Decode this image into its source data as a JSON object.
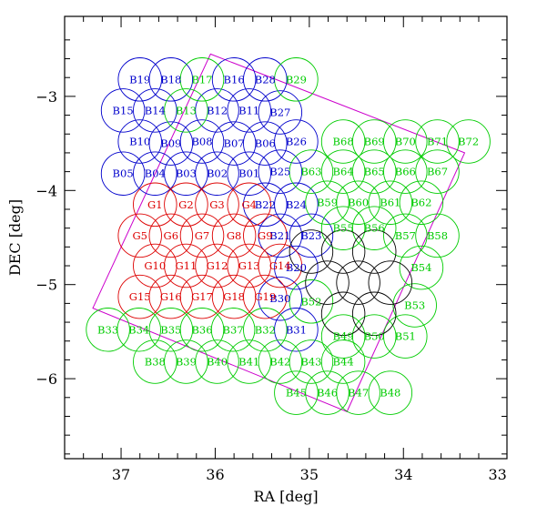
{
  "chart_data": {
    "type": "scatter",
    "xlabel": "RA [deg]",
    "ylabel": "DEC [deg]",
    "xlim": [
      37.6,
      32.9
    ],
    "ylim": [
      -6.85,
      -2.15
    ],
    "xticks": [
      37,
      36,
      35,
      34,
      33
    ],
    "yticks": [
      -3,
      -4,
      -5,
      -6
    ],
    "colors": {
      "blue": "#0000cc",
      "red": "#dd0000",
      "green": "#00cc00",
      "black": "#000000",
      "magenta": "#cc00cc"
    },
    "circle_radius_deg": 0.23,
    "region_polygon": [
      [
        36.05,
        -2.55
      ],
      [
        33.35,
        -3.6
      ],
      [
        34.6,
        -6.35
      ],
      [
        37.3,
        -5.25
      ]
    ],
    "series": [
      {
        "color": "blue",
        "points": [
          {
            "label": "B19",
            "x": 36.8,
            "y": -2.82
          },
          {
            "label": "B18",
            "x": 36.47,
            "y": -2.82
          },
          {
            "label": "B16",
            "x": 35.8,
            "y": -2.82
          },
          {
            "label": "B28",
            "x": 35.47,
            "y": -2.82
          },
          {
            "label": "B15",
            "x": 36.98,
            "y": -3.15
          },
          {
            "label": "B14",
            "x": 36.64,
            "y": -3.15
          },
          {
            "label": "B12",
            "x": 35.98,
            "y": -3.15
          },
          {
            "label": "B11",
            "x": 35.64,
            "y": -3.15
          },
          {
            "label": "B27",
            "x": 35.31,
            "y": -3.17
          },
          {
            "label": "B10",
            "x": 36.8,
            "y": -3.48
          },
          {
            "label": "B09",
            "x": 36.47,
            "y": -3.5
          },
          {
            "label": "B08",
            "x": 36.14,
            "y": -3.48
          },
          {
            "label": "B07",
            "x": 35.8,
            "y": -3.5
          },
          {
            "label": "B06",
            "x": 35.47,
            "y": -3.5
          },
          {
            "label": "B26",
            "x": 35.14,
            "y": -3.48
          },
          {
            "label": "B05",
            "x": 36.98,
            "y": -3.82
          },
          {
            "label": "B04",
            "x": 36.64,
            "y": -3.82
          },
          {
            "label": "B03",
            "x": 36.31,
            "y": -3.82
          },
          {
            "label": "B02",
            "x": 35.98,
            "y": -3.82
          },
          {
            "label": "B01",
            "x": 35.64,
            "y": -3.82
          },
          {
            "label": "B25",
            "x": 35.31,
            "y": -3.8
          },
          {
            "label": "B22",
            "x": 35.47,
            "y": -4.15
          },
          {
            "label": "B24",
            "x": 35.14,
            "y": -4.15
          },
          {
            "label": "B21",
            "x": 35.31,
            "y": -4.48
          },
          {
            "label": "B23",
            "x": 34.98,
            "y": -4.48
          },
          {
            "label": "B20",
            "x": 35.14,
            "y": -4.82
          },
          {
            "label": "B30",
            "x": 35.31,
            "y": -5.15
          },
          {
            "label": "B31",
            "x": 35.14,
            "y": -5.48
          }
        ]
      },
      {
        "color": "red",
        "points": [
          {
            "label": "G1",
            "x": 36.64,
            "y": -4.15
          },
          {
            "label": "G2",
            "x": 36.31,
            "y": -4.15
          },
          {
            "label": "G3",
            "x": 35.98,
            "y": -4.15
          },
          {
            "label": "G4",
            "x": 35.64,
            "y": -4.15
          },
          {
            "label": "G5",
            "x": 36.8,
            "y": -4.48
          },
          {
            "label": "G6",
            "x": 36.47,
            "y": -4.48
          },
          {
            "label": "G7",
            "x": 36.14,
            "y": -4.48
          },
          {
            "label": "G8",
            "x": 35.8,
            "y": -4.48
          },
          {
            "label": "G9",
            "x": 35.47,
            "y": -4.48
          },
          {
            "label": "G10",
            "x": 36.64,
            "y": -4.8
          },
          {
            "label": "G11",
            "x": 36.31,
            "y": -4.8
          },
          {
            "label": "G12",
            "x": 35.98,
            "y": -4.8
          },
          {
            "label": "G13",
            "x": 35.64,
            "y": -4.8
          },
          {
            "label": "G14",
            "x": 35.31,
            "y": -4.8
          },
          {
            "label": "G15",
            "x": 36.8,
            "y": -5.13
          },
          {
            "label": "G16",
            "x": 36.47,
            "y": -5.13
          },
          {
            "label": "G17",
            "x": 36.14,
            "y": -5.13
          },
          {
            "label": "G18",
            "x": 35.8,
            "y": -5.13
          },
          {
            "label": "G19",
            "x": 35.47,
            "y": -5.13
          }
        ]
      },
      {
        "color": "green",
        "points": [
          {
            "label": "B17",
            "x": 36.14,
            "y": -2.82
          },
          {
            "label": "B29",
            "x": 35.14,
            "y": -2.82
          },
          {
            "label": "B13",
            "x": 36.31,
            "y": -3.15
          },
          {
            "label": "B68",
            "x": 34.64,
            "y": -3.48
          },
          {
            "label": "B69",
            "x": 34.31,
            "y": -3.48
          },
          {
            "label": "B70",
            "x": 33.98,
            "y": -3.48
          },
          {
            "label": "B71",
            "x": 33.64,
            "y": -3.48
          },
          {
            "label": "B72",
            "x": 33.31,
            "y": -3.48
          },
          {
            "label": "B63",
            "x": 34.98,
            "y": -3.8
          },
          {
            "label": "B64",
            "x": 34.64,
            "y": -3.8
          },
          {
            "label": "B65",
            "x": 34.31,
            "y": -3.8
          },
          {
            "label": "B66",
            "x": 33.98,
            "y": -3.8
          },
          {
            "label": "B67",
            "x": 33.64,
            "y": -3.8
          },
          {
            "label": "B59",
            "x": 34.81,
            "y": -4.13
          },
          {
            "label": "B60",
            "x": 34.48,
            "y": -4.13
          },
          {
            "label": "B61",
            "x": 34.14,
            "y": -4.13
          },
          {
            "label": "B62",
            "x": 33.81,
            "y": -4.13
          },
          {
            "label": "B55",
            "x": 34.64,
            "y": -4.4
          },
          {
            "label": "B56",
            "x": 34.31,
            "y": -4.4
          },
          {
            "label": "B57",
            "x": 33.98,
            "y": -4.48
          },
          {
            "label": "B58",
            "x": 33.64,
            "y": -4.48
          },
          {
            "label": "B54",
            "x": 33.81,
            "y": -4.82
          },
          {
            "label": "B53",
            "x": 33.88,
            "y": -5.22
          },
          {
            "label": "B52",
            "x": 34.98,
            "y": -5.18
          },
          {
            "label": "B49",
            "x": 34.64,
            "y": -5.55
          },
          {
            "label": "B50",
            "x": 34.31,
            "y": -5.55
          },
          {
            "label": "B51",
            "x": 33.98,
            "y": -5.55
          },
          {
            "label": "B33",
            "x": 37.14,
            "y": -5.48
          },
          {
            "label": "B34",
            "x": 36.81,
            "y": -5.48
          },
          {
            "label": "B35",
            "x": 36.47,
            "y": -5.48
          },
          {
            "label": "B36",
            "x": 36.14,
            "y": -5.48
          },
          {
            "label": "B37",
            "x": 35.81,
            "y": -5.48
          },
          {
            "label": "B32",
            "x": 35.47,
            "y": -5.48
          },
          {
            "label": "B38",
            "x": 36.64,
            "y": -5.82
          },
          {
            "label": "B39",
            "x": 36.31,
            "y": -5.82
          },
          {
            "label": "B40",
            "x": 35.98,
            "y": -5.82
          },
          {
            "label": "B41",
            "x": 35.64,
            "y": -5.82
          },
          {
            "label": "B42",
            "x": 35.31,
            "y": -5.82
          },
          {
            "label": "B43",
            "x": 34.98,
            "y": -5.82
          },
          {
            "label": "B44",
            "x": 34.64,
            "y": -5.82
          },
          {
            "label": "B45",
            "x": 35.14,
            "y": -6.15
          },
          {
            "label": "B46",
            "x": 34.81,
            "y": -6.15
          },
          {
            "label": "B47",
            "x": 34.48,
            "y": -6.15
          },
          {
            "label": "B48",
            "x": 34.14,
            "y": -6.15
          }
        ]
      },
      {
        "color": "black",
        "points": [
          {
            "label": "",
            "x": 34.98,
            "y": -4.65
          },
          {
            "label": "",
            "x": 34.64,
            "y": -4.65
          },
          {
            "label": "",
            "x": 34.31,
            "y": -4.65
          },
          {
            "label": "",
            "x": 34.81,
            "y": -4.98
          },
          {
            "label": "",
            "x": 34.48,
            "y": -4.98
          },
          {
            "label": "",
            "x": 34.14,
            "y": -4.98
          },
          {
            "label": "",
            "x": 34.64,
            "y": -5.31
          },
          {
            "label": "",
            "x": 34.31,
            "y": -5.31
          }
        ]
      }
    ]
  }
}
